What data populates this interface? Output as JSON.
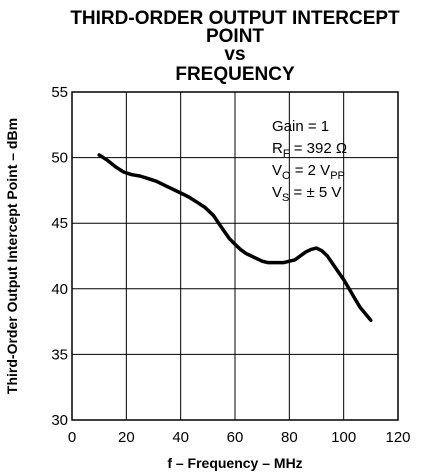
{
  "chart_data": {
    "type": "line",
    "title_lines": [
      "THIRD-ORDER OUTPUT INTERCEPT",
      "POINT",
      "vs",
      "FREQUENCY"
    ],
    "xlabel": "f – Frequency – MHz",
    "ylabel": "Third-Order Output Intercept Point – dBm",
    "xlim": [
      0,
      120
    ],
    "ylim": [
      30,
      55
    ],
    "x_ticks": [
      0,
      20,
      40,
      60,
      80,
      100,
      120
    ],
    "y_ticks": [
      30,
      35,
      40,
      45,
      50,
      55
    ],
    "grid": true,
    "annotations": [
      {
        "main": "Gain = 1",
        "sub": "",
        "tail": ""
      },
      {
        "main": "R",
        "sub": "F",
        "tail": " = 392 Ω"
      },
      {
        "main": "V",
        "sub": "O",
        "tail": " = 2 V"
      },
      {
        "main": "V",
        "sub": "S",
        "tail": " = ± 5 V"
      }
    ],
    "annotation_extra_sub": "PP",
    "series": [
      {
        "x": [
          10,
          13,
          16,
          19,
          22,
          25,
          28,
          31,
          34,
          37,
          40,
          43,
          46,
          49,
          52,
          54,
          56,
          58,
          60,
          62,
          64,
          66,
          68,
          70,
          72,
          74,
          76,
          78,
          80,
          82,
          84,
          86,
          88,
          90,
          92,
          94,
          96,
          98,
          100,
          102,
          104,
          106,
          108,
          110
        ],
        "y": [
          50.2,
          49.8,
          49.3,
          48.9,
          48.7,
          48.6,
          48.4,
          48.2,
          47.9,
          47.6,
          47.3,
          47.0,
          46.6,
          46.2,
          45.6,
          45.0,
          44.4,
          43.8,
          43.4,
          43.0,
          42.7,
          42.5,
          42.3,
          42.1,
          42.0,
          42.0,
          42.0,
          42.0,
          42.1,
          42.2,
          42.5,
          42.8,
          43.0,
          43.1,
          42.9,
          42.5,
          41.9,
          41.3,
          40.7,
          40.0,
          39.3,
          38.6,
          38.1,
          37.6
        ]
      }
    ]
  }
}
